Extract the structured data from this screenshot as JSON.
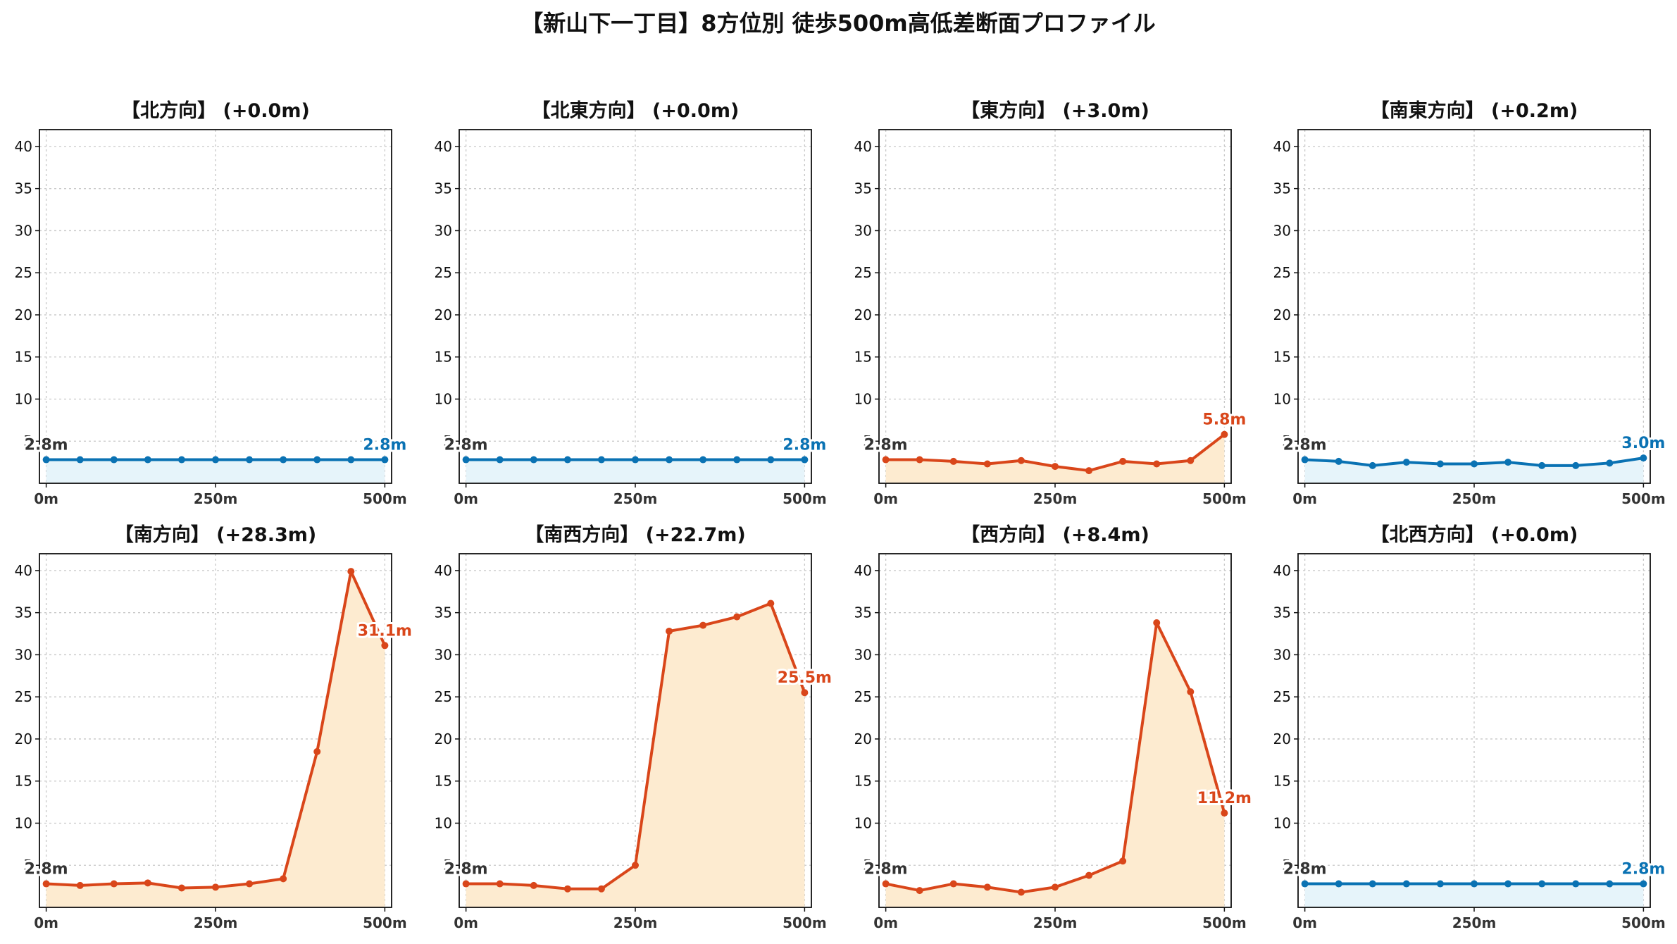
{
  "figure": {
    "title": "【新山下一丁目】8方位別 徒歩500m高低差断面プロファイル"
  },
  "colors": {
    "flat_line": "#0a72b3",
    "flat_fill": "#e6f4fa",
    "slope_line": "#d9461a",
    "slope_fill": "#fdebd0",
    "start_label": "#333333",
    "grid": "#c8c8c8"
  },
  "chart_data": [
    {
      "type": "area",
      "title": "【北方向】 (+0.0m)",
      "style": "flat",
      "x": [
        0,
        50,
        100,
        150,
        200,
        250,
        300,
        350,
        400,
        450,
        500
      ],
      "y": [
        2.8,
        2.8,
        2.8,
        2.8,
        2.8,
        2.8,
        2.8,
        2.8,
        2.8,
        2.8,
        2.8
      ],
      "start_label": "2.8m",
      "end_label": "2.8m",
      "yticks": [
        "5",
        "10",
        "15",
        "20",
        "25",
        "30",
        "35",
        "40"
      ],
      "xticks": [
        "0m",
        "250m",
        "500m"
      ],
      "ylim": [
        0,
        42
      ],
      "xlim": [
        -10,
        510
      ],
      "grid": true
    },
    {
      "type": "area",
      "title": "【北東方向】 (+0.0m)",
      "style": "flat",
      "x": [
        0,
        50,
        100,
        150,
        200,
        250,
        300,
        350,
        400,
        450,
        500
      ],
      "y": [
        2.8,
        2.8,
        2.8,
        2.8,
        2.8,
        2.8,
        2.8,
        2.8,
        2.8,
        2.8,
        2.8
      ],
      "start_label": "2.8m",
      "end_label": "2.8m",
      "yticks": [
        "5",
        "10",
        "15",
        "20",
        "25",
        "30",
        "35",
        "40"
      ],
      "xticks": [
        "0m",
        "250m",
        "500m"
      ],
      "ylim": [
        0,
        42
      ],
      "xlim": [
        -10,
        510
      ],
      "grid": true
    },
    {
      "type": "area",
      "title": "【東方向】 (+3.0m)",
      "style": "slope",
      "x": [
        0,
        50,
        100,
        150,
        200,
        250,
        300,
        350,
        400,
        450,
        500
      ],
      "y": [
        2.8,
        2.8,
        2.6,
        2.3,
        2.7,
        2.0,
        1.5,
        2.6,
        2.3,
        2.7,
        5.8
      ],
      "start_label": "2.8m",
      "end_label": "5.8m",
      "yticks": [
        "5",
        "10",
        "15",
        "20",
        "25",
        "30",
        "35",
        "40"
      ],
      "xticks": [
        "0m",
        "250m",
        "500m"
      ],
      "ylim": [
        0,
        42
      ],
      "xlim": [
        -10,
        510
      ],
      "grid": true
    },
    {
      "type": "area",
      "title": "【南東方向】 (+0.2m)",
      "style": "flat",
      "x": [
        0,
        50,
        100,
        150,
        200,
        250,
        300,
        350,
        400,
        450,
        500
      ],
      "y": [
        2.8,
        2.6,
        2.1,
        2.5,
        2.3,
        2.3,
        2.5,
        2.1,
        2.1,
        2.4,
        3.0
      ],
      "start_label": "2.8m",
      "end_label": "3.0m",
      "yticks": [
        "5",
        "10",
        "15",
        "20",
        "25",
        "30",
        "35",
        "40"
      ],
      "xticks": [
        "0m",
        "250m",
        "500m"
      ],
      "ylim": [
        0,
        42
      ],
      "xlim": [
        -10,
        510
      ],
      "grid": true
    },
    {
      "type": "area",
      "title": "【南方向】 (+28.3m)",
      "style": "slope",
      "x": [
        0,
        50,
        100,
        150,
        200,
        250,
        300,
        350,
        400,
        450,
        500
      ],
      "y": [
        2.8,
        2.6,
        2.8,
        2.9,
        2.3,
        2.4,
        2.8,
        3.4,
        18.5,
        39.9,
        31.1
      ],
      "start_label": "2.8m",
      "end_label": "31.1m",
      "yticks": [
        "5",
        "10",
        "15",
        "20",
        "25",
        "30",
        "35",
        "40"
      ],
      "xticks": [
        "0m",
        "250m",
        "500m"
      ],
      "ylim": [
        0,
        42
      ],
      "xlim": [
        -10,
        510
      ],
      "grid": true
    },
    {
      "type": "area",
      "title": "【南西方向】 (+22.7m)",
      "style": "slope",
      "x": [
        0,
        50,
        100,
        150,
        200,
        250,
        300,
        350,
        400,
        450,
        500
      ],
      "y": [
        2.8,
        2.8,
        2.6,
        2.2,
        2.2,
        5.0,
        32.8,
        33.5,
        34.5,
        36.1,
        25.5
      ],
      "start_label": "2.8m",
      "end_label": "25.5m",
      "yticks": [
        "5",
        "10",
        "15",
        "20",
        "25",
        "30",
        "35",
        "40"
      ],
      "xticks": [
        "0m",
        "250m",
        "500m"
      ],
      "ylim": [
        0,
        42
      ],
      "xlim": [
        -10,
        510
      ],
      "grid": true
    },
    {
      "type": "area",
      "title": "【西方向】 (+8.4m)",
      "style": "slope",
      "x": [
        0,
        50,
        100,
        150,
        200,
        250,
        300,
        350,
        400,
        450,
        500
      ],
      "y": [
        2.8,
        2.0,
        2.8,
        2.4,
        1.8,
        2.4,
        3.8,
        5.5,
        33.8,
        25.6,
        11.2
      ],
      "start_label": "2.8m",
      "end_label": "11.2m",
      "yticks": [
        "5",
        "10",
        "15",
        "20",
        "25",
        "30",
        "35",
        "40"
      ],
      "xticks": [
        "0m",
        "250m",
        "500m"
      ],
      "ylim": [
        0,
        42
      ],
      "xlim": [
        -10,
        510
      ],
      "grid": true
    },
    {
      "type": "area",
      "title": "【北西方向】 (+0.0m)",
      "style": "flat",
      "x": [
        0,
        50,
        100,
        150,
        200,
        250,
        300,
        350,
        400,
        450,
        500
      ],
      "y": [
        2.8,
        2.8,
        2.8,
        2.8,
        2.8,
        2.8,
        2.8,
        2.8,
        2.8,
        2.8,
        2.8
      ],
      "start_label": "2.8m",
      "end_label": "2.8m",
      "yticks": [
        "5",
        "10",
        "15",
        "20",
        "25",
        "30",
        "35",
        "40"
      ],
      "xticks": [
        "0m",
        "250m",
        "500m"
      ],
      "ylim": [
        0,
        42
      ],
      "xlim": [
        -10,
        510
      ],
      "grid": true
    }
  ]
}
